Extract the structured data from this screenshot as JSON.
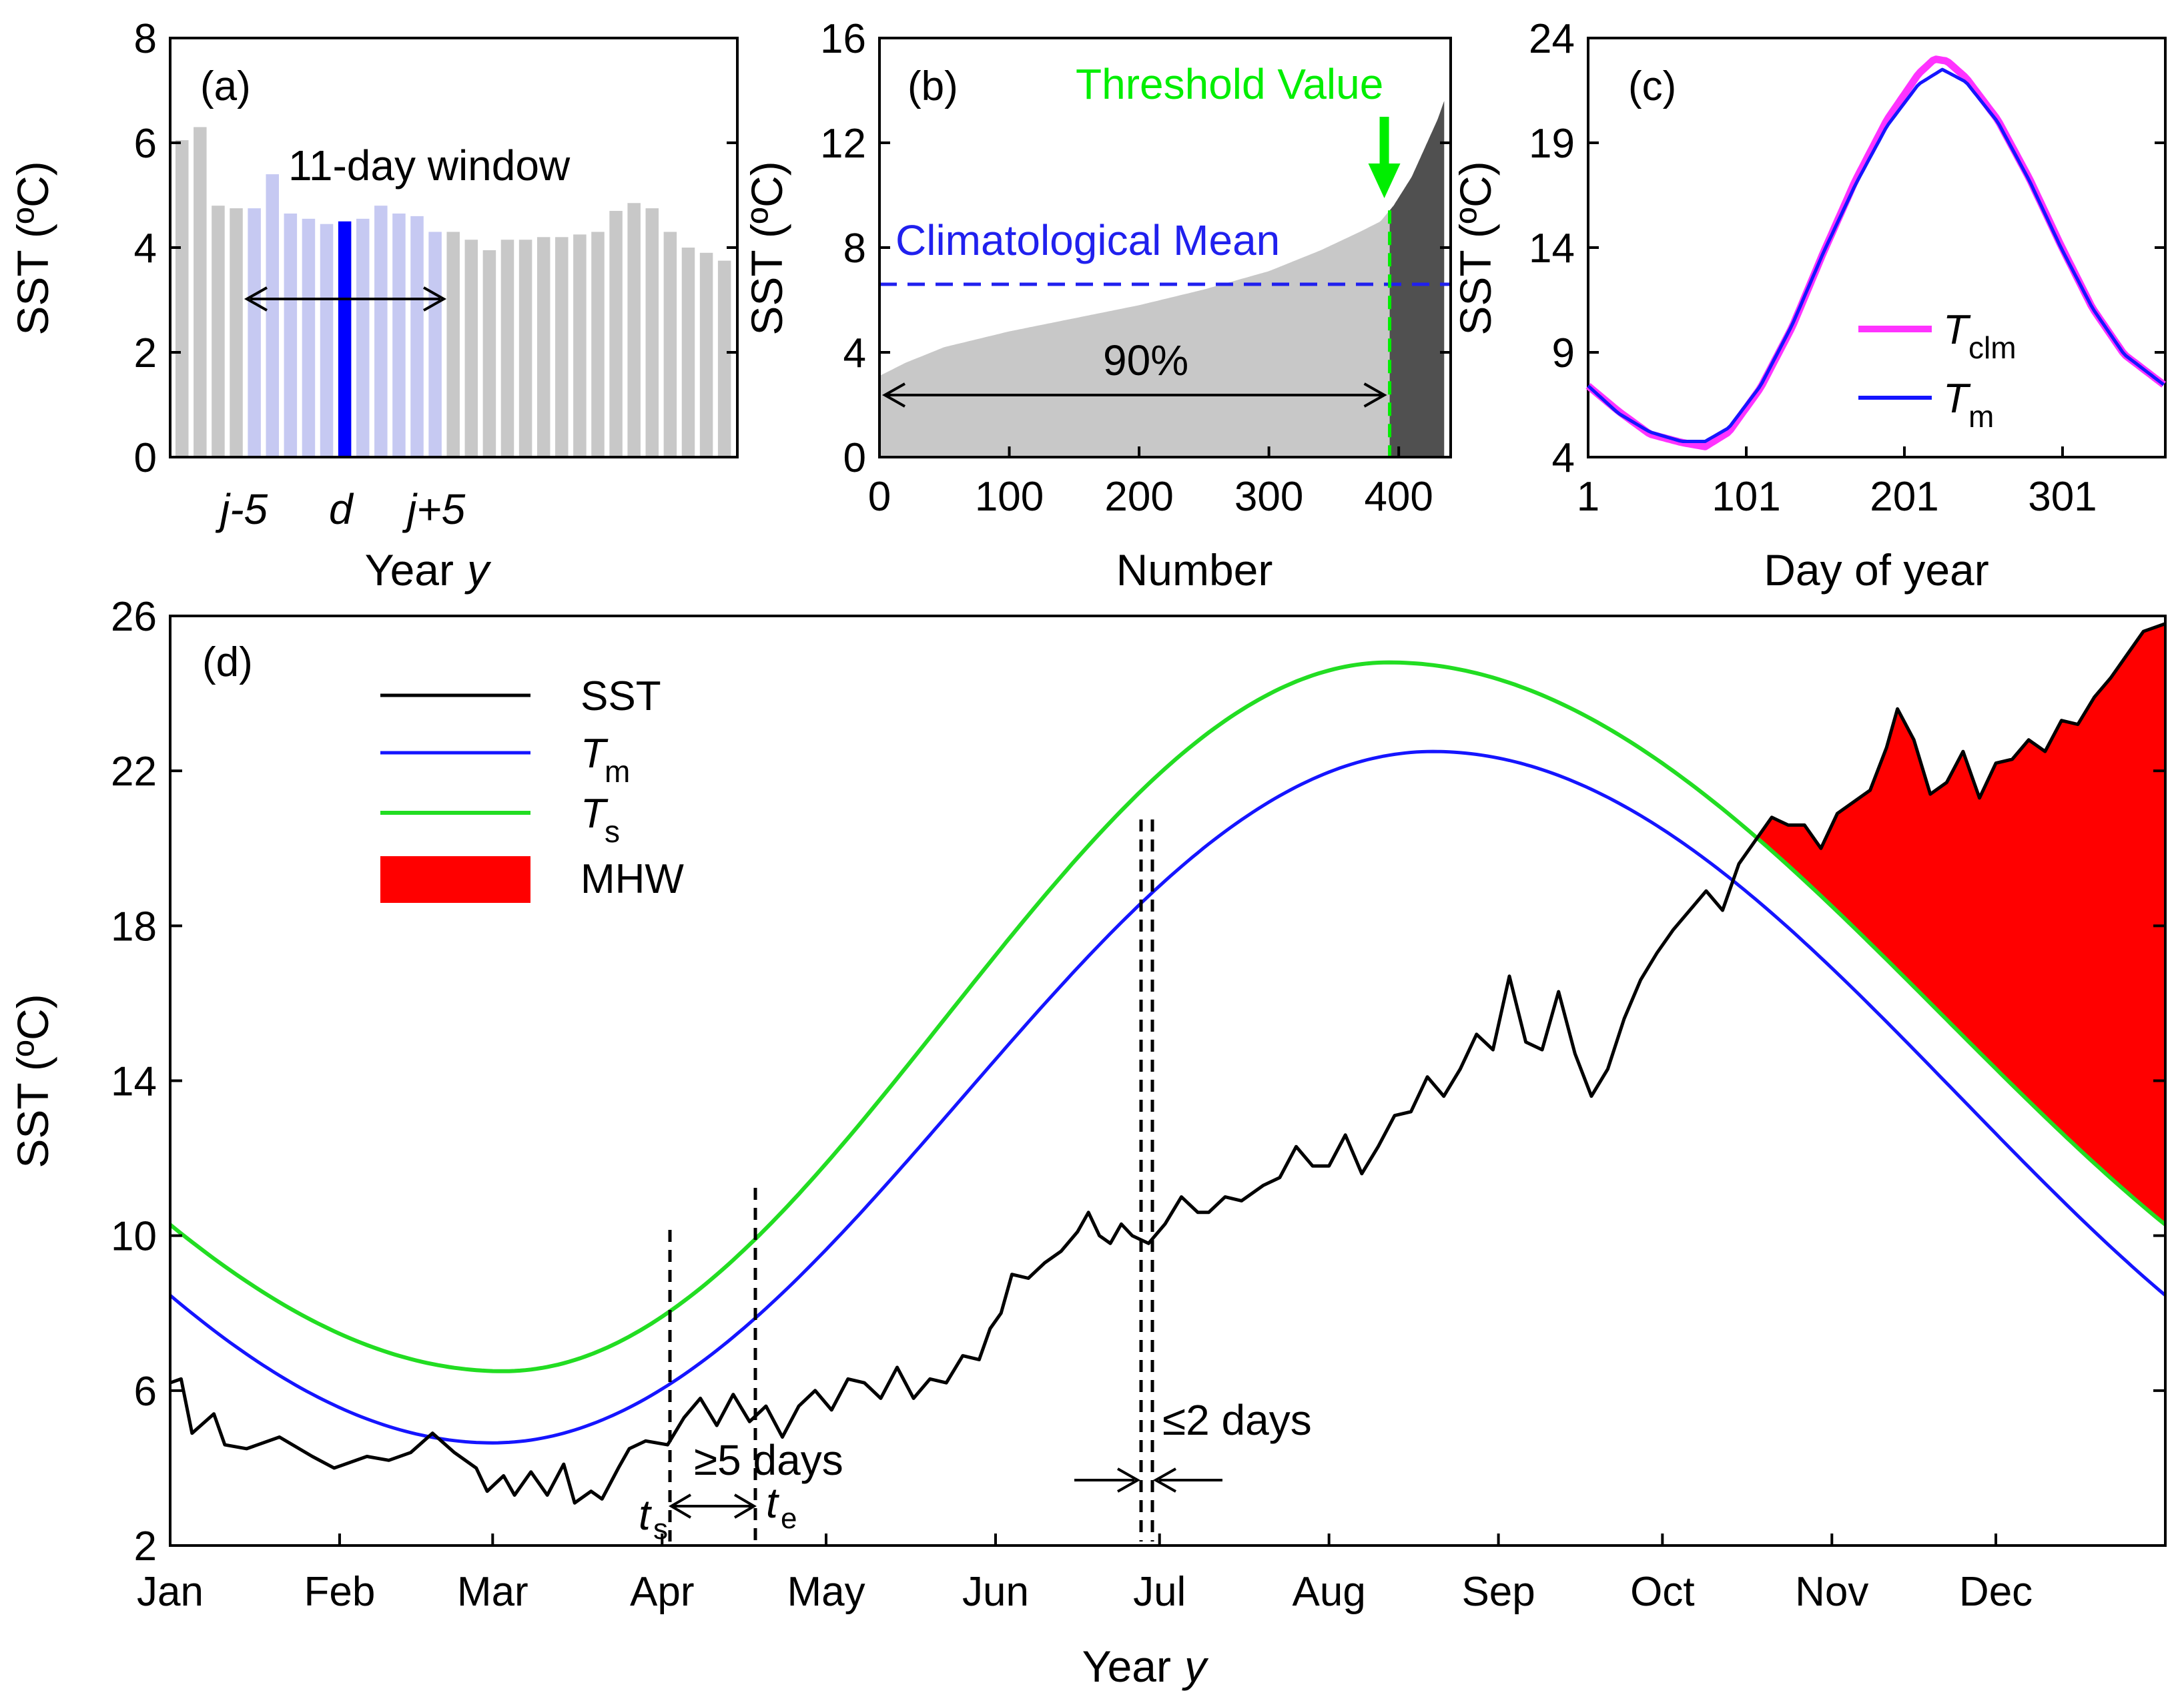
{
  "colors": {
    "bar_gray": "#c8c8c8",
    "bar_window": "#c6c9f2",
    "bar_center": "#0000ff",
    "dark_fill": "#505050",
    "threshold": "#00ee00",
    "climatology_line": "#2020ee",
    "tclm": "#ff33ff",
    "tm": "#1515ff",
    "ts": "#22dd22",
    "sst": "#000000",
    "mhw": "#ff0000"
  },
  "chart_data": [
    {
      "type": "bar",
      "panel": "(a)",
      "xlabel": "Year",
      "xlabel_var": "y",
      "ylabel": "SST (ºC)",
      "ylim": [
        0,
        8
      ],
      "yticks": [
        "0",
        "2",
        "4",
        "6",
        "8"
      ],
      "xtick_labels": [
        "j-5",
        "d",
        "j+5"
      ],
      "annotation": "11-day window",
      "values": [
        6.05,
        6.3,
        4.8,
        4.75,
        4.75,
        5.4,
        4.65,
        4.55,
        4.45,
        4.5,
        4.55,
        4.8,
        4.65,
        4.6,
        4.3,
        4.3,
        4.15,
        3.95,
        4.15,
        4.15,
        4.2,
        4.2,
        4.25,
        4.3,
        4.7,
        4.85,
        4.75,
        4.3,
        4.0,
        3.9,
        3.75
      ],
      "window_start": 4,
      "window_end": 14,
      "center_index": 9
    },
    {
      "type": "area",
      "panel": "(b)",
      "xlabel": "Number",
      "ylabel": "SST (ºC)",
      "xlim": [
        0,
        440
      ],
      "ylim": [
        0,
        16
      ],
      "xticks": [
        "0",
        "100",
        "200",
        "300",
        "400"
      ],
      "yticks": [
        "0",
        "4",
        "8",
        "12",
        "16"
      ],
      "sorted_curve": [
        [
          0,
          3.1
        ],
        [
          20,
          3.6
        ],
        [
          50,
          4.2
        ],
        [
          100,
          4.8
        ],
        [
          150,
          5.3
        ],
        [
          200,
          5.8
        ],
        [
          250,
          6.4
        ],
        [
          300,
          7.1
        ],
        [
          340,
          7.9
        ],
        [
          370,
          8.6
        ],
        [
          386,
          9.0
        ],
        [
          396,
          9.6
        ],
        [
          410,
          10.7
        ],
        [
          420,
          11.8
        ],
        [
          430,
          12.9
        ],
        [
          435,
          13.6
        ]
      ],
      "threshold_x": 393,
      "climatological_mean": 6.6,
      "threshold_label": "Threshold Value",
      "mean_label": "Climatological Mean",
      "percent_label": "90%"
    },
    {
      "type": "line",
      "panel": "(c)",
      "xlabel": "Day of year",
      "ylabel": "SST (ºC)",
      "xlim": [
        1,
        366
      ],
      "ylim": [
        4,
        24
      ],
      "xticks": [
        "1",
        "101",
        "201",
        "301"
      ],
      "yticks": [
        "4",
        "9",
        "14",
        "19",
        "24"
      ],
      "series": [
        {
          "name": "T",
          "subscript": "clm",
          "values": [
            [
              1,
              7.4
            ],
            [
              20,
              6.2
            ],
            [
              40,
              5.1
            ],
            [
              60,
              4.7
            ],
            [
              75,
              4.5
            ],
            [
              90,
              5.2
            ],
            [
              110,
              7.3
            ],
            [
              130,
              10.2
            ],
            [
              150,
              13.8
            ],
            [
              170,
              17.2
            ],
            [
              190,
              20.1
            ],
            [
              210,
              22.3
            ],
            [
              220,
              23.0
            ],
            [
              228,
              22.9
            ],
            [
              240,
              22.1
            ],
            [
              260,
              20.1
            ],
            [
              280,
              17.3
            ],
            [
              300,
              14.1
            ],
            [
              320,
              11.1
            ],
            [
              340,
              8.9
            ],
            [
              366,
              7.4
            ]
          ]
        },
        {
          "name": "T",
          "subscript": "m",
          "values": [
            [
              1,
              7.4
            ],
            [
              20,
              6.1
            ],
            [
              40,
              5.2
            ],
            [
              60,
              4.75
            ],
            [
              75,
              4.75
            ],
            [
              90,
              5.4
            ],
            [
              110,
              7.4
            ],
            [
              130,
              10.3
            ],
            [
              150,
              13.8
            ],
            [
              170,
              17.0
            ],
            [
              190,
              19.8
            ],
            [
              210,
              21.8
            ],
            [
              225,
              22.5
            ],
            [
              240,
              21.9
            ],
            [
              260,
              20.0
            ],
            [
              280,
              17.2
            ],
            [
              300,
              14.0
            ],
            [
              320,
              11.1
            ],
            [
              340,
              8.9
            ],
            [
              366,
              7.4
            ]
          ]
        }
      ]
    },
    {
      "type": "line",
      "panel": "(d)",
      "xlabel": "Year",
      "xlabel_var": "y",
      "ylabel": "SST (ºC)",
      "xlim": [
        0,
        365
      ],
      "ylim": [
        2,
        26
      ],
      "yticks": [
        "2",
        "6",
        "10",
        "14",
        "18",
        "22",
        "26"
      ],
      "months": [
        "Jan",
        "Feb",
        "Mar",
        "Apr",
        "May",
        "Jun",
        "Jul",
        "Aug",
        "Sep",
        "Oct",
        "Nov",
        "Dec"
      ],
      "tm_min": 4.65,
      "tm_max": 22.5,
      "tm_min_day": 59,
      "tm_max_day": 231,
      "ts_min": 6.5,
      "ts_max": 24.8,
      "ts_min_day": 61,
      "ts_max_day": 223,
      "sst_keypoints": [
        [
          0,
          6.2
        ],
        [
          2,
          6.3
        ],
        [
          4,
          4.9
        ],
        [
          8,
          5.4
        ],
        [
          10,
          4.6
        ],
        [
          14,
          4.5
        ],
        [
          20,
          4.8
        ],
        [
          26,
          4.3
        ],
        [
          30,
          4.0
        ],
        [
          36,
          4.3
        ],
        [
          40,
          4.2
        ],
        [
          44,
          4.4
        ],
        [
          48,
          4.9
        ],
        [
          52,
          4.4
        ],
        [
          56,
          4.0
        ],
        [
          58,
          3.4
        ],
        [
          61,
          3.8
        ],
        [
          63,
          3.3
        ],
        [
          66,
          3.9
        ],
        [
          69,
          3.3
        ],
        [
          72,
          4.1
        ],
        [
          74,
          3.1
        ],
        [
          77,
          3.4
        ],
        [
          79,
          3.2
        ],
        [
          82,
          4.0
        ],
        [
          84,
          4.5
        ],
        [
          87,
          4.7
        ],
        [
          91,
          4.6
        ],
        [
          94,
          5.3
        ],
        [
          97,
          5.8
        ],
        [
          100,
          5.1
        ],
        [
          103,
          5.9
        ],
        [
          106,
          5.2
        ],
        [
          109,
          5.6
        ],
        [
          112,
          4.8
        ],
        [
          115,
          5.6
        ],
        [
          118,
          6.0
        ],
        [
          121,
          5.5
        ],
        [
          124,
          6.3
        ],
        [
          127,
          6.2
        ],
        [
          130,
          5.8
        ],
        [
          133,
          6.6
        ],
        [
          136,
          5.8
        ],
        [
          139,
          6.3
        ],
        [
          142,
          6.2
        ],
        [
          145,
          6.9
        ],
        [
          148,
          6.8
        ],
        [
          150,
          7.6
        ],
        [
          152,
          8.0
        ],
        [
          154,
          9.0
        ],
        [
          157,
          8.9
        ],
        [
          160,
          9.3
        ],
        [
          163,
          9.6
        ],
        [
          166,
          10.1
        ],
        [
          168,
          10.6
        ],
        [
          170,
          10.0
        ],
        [
          172,
          9.8
        ],
        [
          174,
          10.3
        ],
        [
          176,
          10.0
        ],
        [
          179,
          9.8
        ],
        [
          182,
          10.3
        ],
        [
          185,
          11.0
        ],
        [
          188,
          10.6
        ],
        [
          190,
          10.6
        ],
        [
          193,
          11.0
        ],
        [
          196,
          10.9
        ],
        [
          200,
          11.3
        ],
        [
          203,
          11.5
        ],
        [
          206,
          12.3
        ],
        [
          209,
          11.8
        ],
        [
          212,
          11.8
        ],
        [
          215,
          12.6
        ],
        [
          218,
          11.6
        ],
        [
          221,
          12.3
        ],
        [
          224,
          13.1
        ],
        [
          227,
          13.2
        ],
        [
          230,
          14.1
        ],
        [
          233,
          13.6
        ],
        [
          236,
          14.3
        ],
        [
          239,
          15.2
        ],
        [
          242,
          14.8
        ],
        [
          245,
          16.7
        ],
        [
          248,
          15.0
        ],
        [
          251,
          14.8
        ],
        [
          254,
          16.3
        ],
        [
          257,
          14.7
        ],
        [
          260,
          13.6
        ],
        [
          263,
          14.3
        ],
        [
          266,
          15.6
        ],
        [
          269,
          16.6
        ],
        [
          272,
          17.3
        ],
        [
          275,
          17.9
        ],
        [
          278,
          18.4
        ],
        [
          281,
          18.9
        ],
        [
          284,
          18.4
        ],
        [
          287,
          19.6
        ],
        [
          290,
          20.2
        ],
        [
          293,
          20.8
        ],
        [
          296,
          20.6
        ],
        [
          299,
          20.6
        ],
        [
          302,
          20.0
        ],
        [
          305,
          20.9
        ],
        [
          308,
          21.2
        ],
        [
          311,
          21.5
        ],
        [
          314,
          22.6
        ],
        [
          316,
          23.6
        ],
        [
          319,
          22.8
        ],
        [
          322,
          21.4
        ],
        [
          325,
          21.7
        ],
        [
          328,
          22.5
        ],
        [
          331,
          21.3
        ],
        [
          334,
          22.2
        ],
        [
          337,
          22.3
        ],
        [
          340,
          22.8
        ],
        [
          343,
          22.5
        ],
        [
          346,
          23.3
        ],
        [
          349,
          23.2
        ],
        [
          352,
          23.9
        ],
        [
          355,
          24.4
        ],
        [
          358,
          25.0
        ],
        [
          361,
          25.6
        ],
        [
          365,
          25.8
        ]
      ],
      "legend": [
        {
          "label": "SST",
          "sub": ""
        },
        {
          "label": "T",
          "sub": "m"
        },
        {
          "label": "T",
          "sub": "s"
        },
        {
          "label": "MHW",
          "sub": ""
        }
      ],
      "annotations": {
        "duration_label": "≥5 days",
        "gap_label": "≤2 days",
        "start_label": "t",
        "start_sub": "s",
        "end_label": "t",
        "end_sub": "e"
      }
    }
  ]
}
